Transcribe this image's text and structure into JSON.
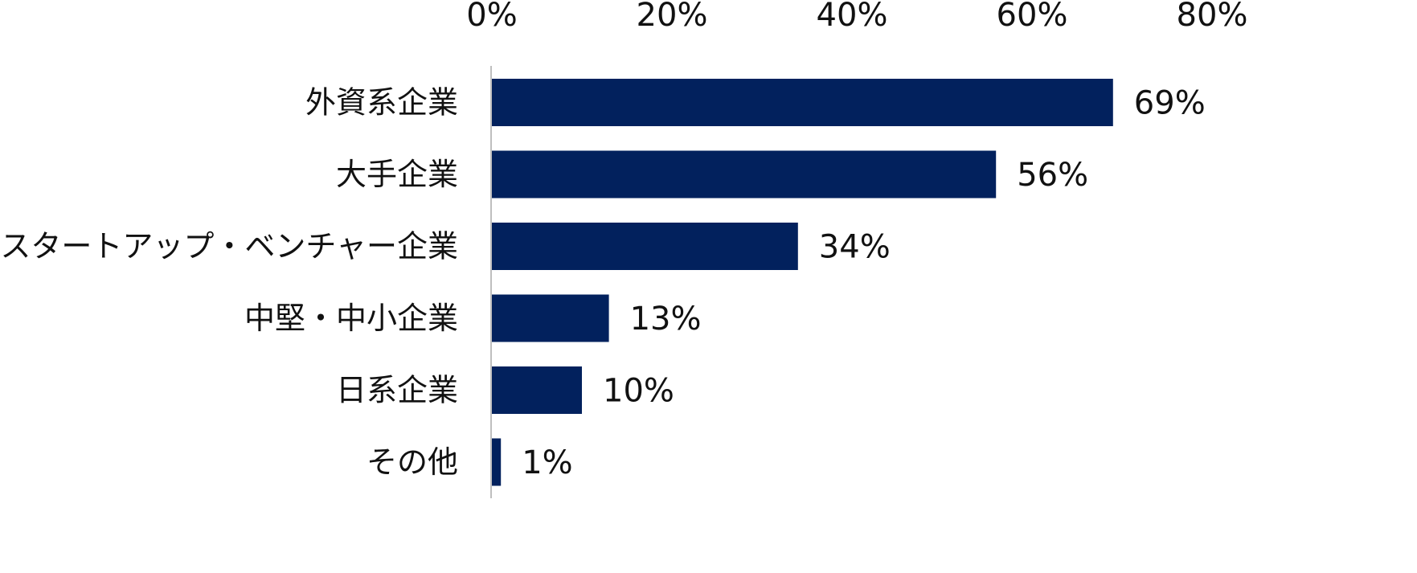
{
  "chart_data": {
    "type": "bar",
    "orientation": "horizontal",
    "title": "",
    "xlabel": "",
    "ylabel": "",
    "xlim": [
      0,
      80
    ],
    "x_ticks": [
      0,
      20,
      40,
      60,
      80
    ],
    "x_tick_labels": [
      "0%",
      "20%",
      "40%",
      "60%",
      "80%"
    ],
    "x_axis_position": "top",
    "grid": false,
    "legend": "none",
    "categories": [
      "外資系企業",
      "大手企業",
      "スタートアップ・ベンチャー企業",
      "中堅・中小企業",
      "日系企業",
      "その他"
    ],
    "values": [
      69,
      56,
      34,
      13,
      10,
      1
    ],
    "value_labels": [
      "69%",
      "56%",
      "34%",
      "13%",
      "10%",
      "1%"
    ],
    "bar_color": "#02215D",
    "axis_line_color": "#BFBFBF"
  }
}
